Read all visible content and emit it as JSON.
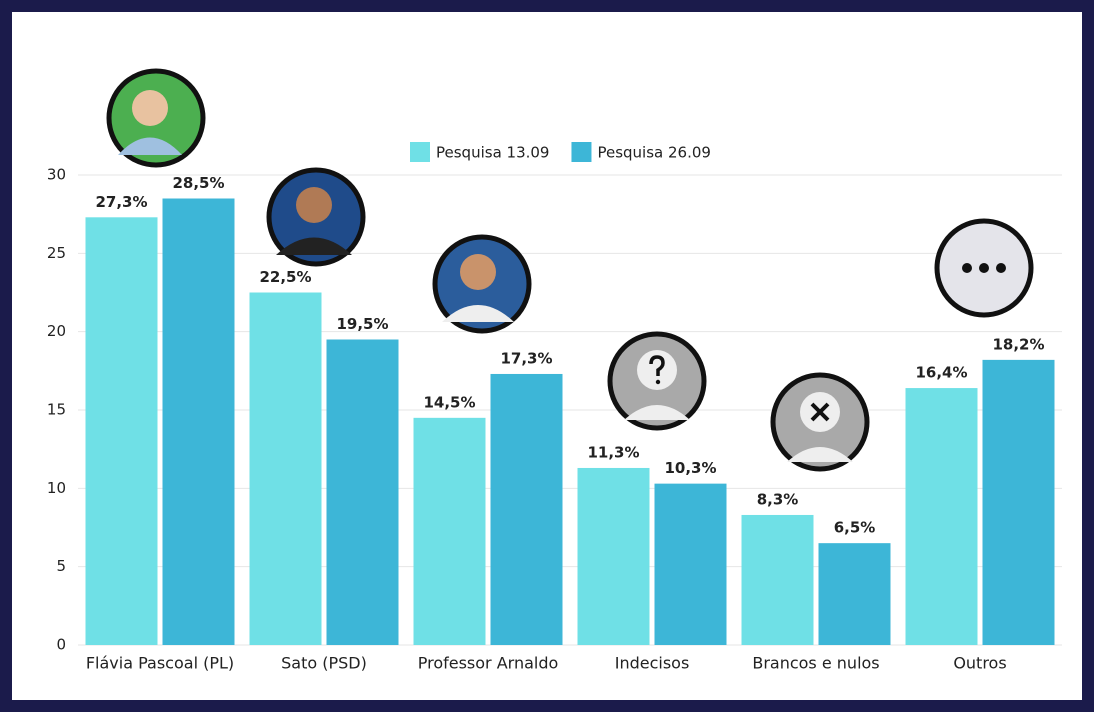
{
  "chart_data": {
    "type": "bar",
    "categories": [
      "Flávia Pascoal (PL)",
      "Sato (PSD)",
      "Professor Arnaldo",
      "Indecisos",
      "Brancos e nulos",
      "Outros"
    ],
    "series": [
      {
        "name": "Pesquisa 13.09",
        "color": "#6fe0e6",
        "values": [
          27.3,
          22.5,
          14.5,
          11.3,
          8.3,
          16.4
        ],
        "value_labels": [
          "27,3%",
          "22,5%",
          "14,5%",
          "11,3%",
          "8,3%",
          "16,4%"
        ]
      },
      {
        "name": "Pesquisa 26.09",
        "color": "#3db6d7",
        "values": [
          28.5,
          19.5,
          17.3,
          10.3,
          6.5,
          18.2
        ],
        "value_labels": [
          "28,5%",
          "19,5%",
          "17,3%",
          "10,3%",
          "6,5%",
          "18,2%"
        ]
      }
    ],
    "ylim": [
      0,
      30
    ],
    "yticks": [
      0,
      5,
      10,
      15,
      20,
      25,
      30
    ],
    "grid": true
  }
}
